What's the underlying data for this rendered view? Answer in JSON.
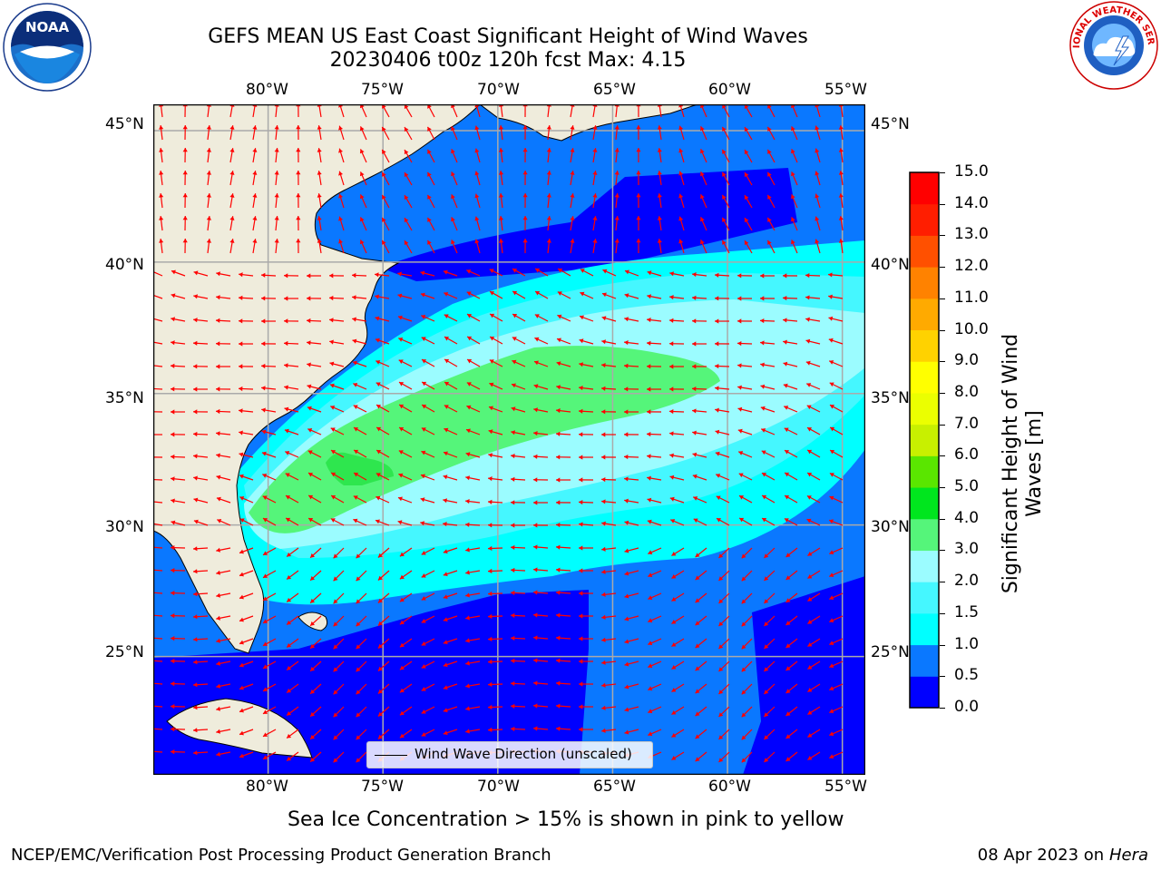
{
  "title": {
    "line1": "GEFS MEAN US East Coast Significant Height of Wind Waves",
    "line2": "20230406 t00z 120h fcst   Max: 4.15"
  },
  "logos": {
    "left": "NOAA",
    "right": "NATIONAL WEATHER SERVICE"
  },
  "map": {
    "lon_labels": [
      "80°W",
      "75°W",
      "70°W",
      "65°W",
      "60°W",
      "55°W"
    ],
    "lat_labels": [
      "45°N",
      "40°N",
      "35°N",
      "30°N",
      "25°N"
    ],
    "lon_range": [
      -85,
      -54
    ],
    "lat_range": [
      20.5,
      46
    ],
    "grid": true,
    "land_color": "#efecdc",
    "vector_color": "#ff0000",
    "legend_text": "Wind Wave Direction (unscaled)"
  },
  "colorbar": {
    "title": "Significant Height of Wind Waves [m]",
    "title_line1": "Significant Height of Wind",
    "title_line2": "Waves [m]",
    "ticks": [
      "0.0",
      "0.5",
      "1.0",
      "1.5",
      "2.0",
      "3.0",
      "4.0",
      "5.0",
      "6.0",
      "7.0",
      "8.0",
      "9.0",
      "10.0",
      "11.0",
      "12.0",
      "13.0",
      "14.0",
      "15.0"
    ],
    "colors": [
      "#0000ff",
      "#0a78ff",
      "#00ffff",
      "#45f7ff",
      "#9bfcff",
      "#55f57a",
      "#00e61e",
      "#5ae600",
      "#c8f000",
      "#ebff00",
      "#ffff00",
      "#ffd200",
      "#ffaa00",
      "#ff8200",
      "#ff5000",
      "#ff1e00",
      "#ff0000"
    ]
  },
  "footer": {
    "note": "Sea Ice Concentration > 15% is shown in pink to yellow",
    "left": "NCEP/EMC/Verification Post Processing Product Generation Branch",
    "right_date": "08 Apr 2023 on",
    "right_machine": "Hera"
  }
}
